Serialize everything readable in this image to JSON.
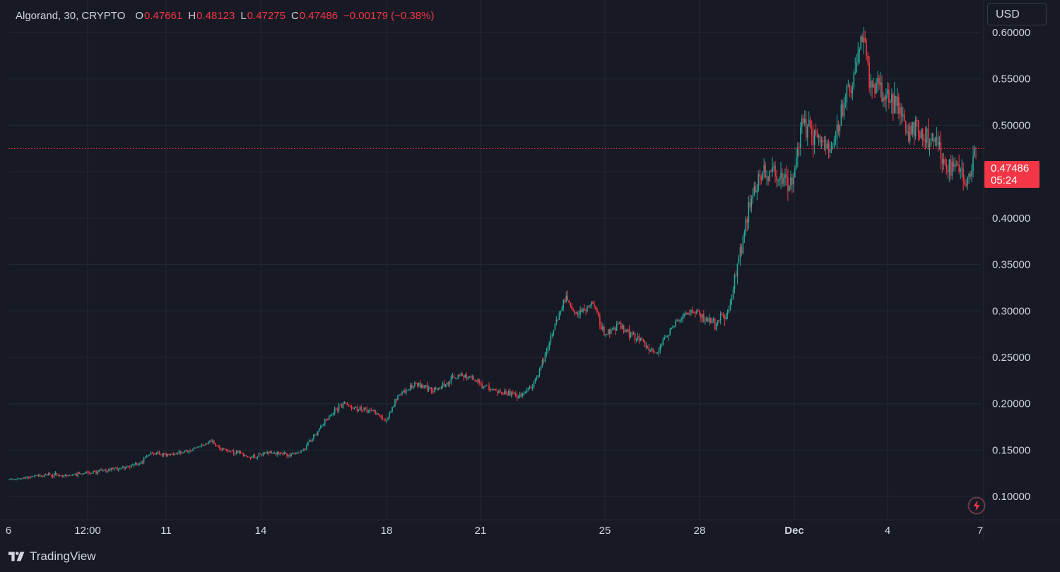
{
  "legend": {
    "symbol": "Algorand, 30, CRYPTO",
    "open_label": "O",
    "open": "0.47661",
    "high_label": "H",
    "high": "0.48123",
    "low_label": "L",
    "low": "0.47275",
    "close_label": "C",
    "close": "0.47486",
    "change": "−0.00179 (−0.38%)"
  },
  "currency": "USD",
  "last_price": {
    "price": "0.47486",
    "countdown": "05:24"
  },
  "brand": {
    "name": "TradingView",
    "icon": "tradingview-logo-icon"
  },
  "colors": {
    "background": "#171a24",
    "grid": "#242833",
    "text": "#d1d4dc",
    "up": "#26a69a",
    "down": "#f23645",
    "price_line": "#f23645"
  },
  "chart_data": {
    "type": "candlestick",
    "interval": "30",
    "ylim": [
      0.075,
      0.635
    ],
    "grid": true,
    "y_ticks": [
      "0.60000",
      "0.55000",
      "0.50000",
      "0.45000",
      "0.40000",
      "0.35000",
      "0.30000",
      "0.25000",
      "0.20000",
      "0.15000",
      "0.10000"
    ],
    "x_ticks": [
      "6",
      "12:00",
      "11",
      "14",
      "18",
      "21",
      "25",
      "28",
      "Dec",
      "4",
      "7"
    ],
    "last_price": 0.47486,
    "price_path": [
      [
        0.0,
        0.118
      ],
      [
        0.02,
        0.121
      ],
      [
        0.04,
        0.124
      ],
      [
        0.06,
        0.122
      ],
      [
        0.08,
        0.125
      ],
      [
        0.1,
        0.128
      ],
      [
        0.12,
        0.132
      ],
      [
        0.135,
        0.135
      ],
      [
        0.145,
        0.147
      ],
      [
        0.16,
        0.145
      ],
      [
        0.18,
        0.148
      ],
      [
        0.2,
        0.155
      ],
      [
        0.21,
        0.16
      ],
      [
        0.22,
        0.15
      ],
      [
        0.235,
        0.148
      ],
      [
        0.25,
        0.142
      ],
      [
        0.27,
        0.148
      ],
      [
        0.29,
        0.145
      ],
      [
        0.305,
        0.15
      ],
      [
        0.315,
        0.165
      ],
      [
        0.33,
        0.185
      ],
      [
        0.345,
        0.2
      ],
      [
        0.36,
        0.195
      ],
      [
        0.375,
        0.192
      ],
      [
        0.39,
        0.182
      ],
      [
        0.4,
        0.205
      ],
      [
        0.42,
        0.222
      ],
      [
        0.44,
        0.215
      ],
      [
        0.455,
        0.225
      ],
      [
        0.47,
        0.232
      ],
      [
        0.49,
        0.22
      ],
      [
        0.51,
        0.213
      ],
      [
        0.53,
        0.208
      ],
      [
        0.545,
        0.225
      ],
      [
        0.555,
        0.255
      ],
      [
        0.565,
        0.285
      ],
      [
        0.575,
        0.315
      ],
      [
        0.585,
        0.295
      ],
      [
        0.595,
        0.3
      ],
      [
        0.605,
        0.31
      ],
      [
        0.615,
        0.275
      ],
      [
        0.63,
        0.285
      ],
      [
        0.65,
        0.27
      ],
      [
        0.67,
        0.255
      ],
      [
        0.69,
        0.29
      ],
      [
        0.71,
        0.3
      ],
      [
        0.73,
        0.285
      ],
      [
        0.745,
        0.305
      ],
      [
        0.755,
        0.355
      ],
      [
        0.765,
        0.41
      ],
      [
        0.775,
        0.445
      ],
      [
        0.79,
        0.45
      ],
      [
        0.81,
        0.43
      ],
      [
        0.82,
        0.5
      ],
      [
        0.835,
        0.49
      ],
      [
        0.85,
        0.47
      ],
      [
        0.86,
        0.51
      ],
      [
        0.875,
        0.56
      ],
      [
        0.882,
        0.6
      ],
      [
        0.89,
        0.545
      ],
      [
        0.9,
        0.54
      ],
      [
        0.915,
        0.525
      ],
      [
        0.93,
        0.495
      ],
      [
        0.95,
        0.49
      ],
      [
        0.96,
        0.48
      ],
      [
        0.97,
        0.45
      ],
      [
        0.98,
        0.46
      ],
      [
        0.99,
        0.438
      ],
      [
        1.0,
        0.475
      ]
    ]
  }
}
